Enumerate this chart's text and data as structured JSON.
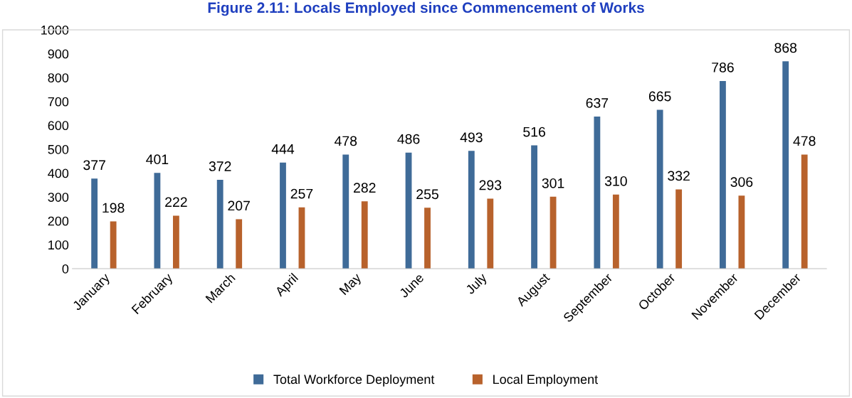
{
  "chart_data": {
    "type": "bar",
    "title": "Figure 2.11: Locals Employed since Commencement of Works",
    "categories": [
      "January",
      "February",
      "March",
      "April",
      "May",
      "June",
      "July",
      "August",
      "September",
      "October",
      "November",
      "December"
    ],
    "series": [
      {
        "name": "Total Workforce Deployment",
        "color": "#3f6b98",
        "values": [
          377,
          401,
          372,
          444,
          478,
          486,
          493,
          516,
          637,
          665,
          786,
          868
        ]
      },
      {
        "name": "Local Employment",
        "color": "#b8622c",
        "values": [
          198,
          222,
          207,
          257,
          282,
          255,
          293,
          301,
          310,
          332,
          306,
          478
        ]
      }
    ],
    "ylim": [
      0,
      1000
    ],
    "yticks": [
      0,
      100,
      200,
      300,
      400,
      500,
      600,
      700,
      800,
      900,
      1000
    ],
    "data_labels": true,
    "grid": false,
    "legend": "bottom"
  }
}
